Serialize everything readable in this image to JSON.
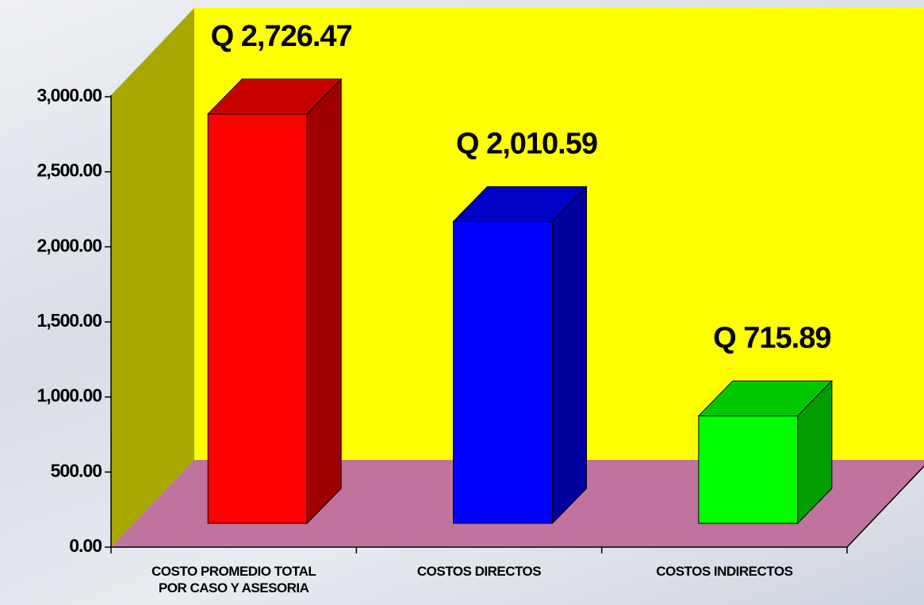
{
  "chart_data": {
    "type": "bar3d",
    "categories": [
      "COSTO PROMEDIO TOTAL POR CASO Y ASESORIA",
      "COSTOS DIRECTOS",
      "COSTOS INDIRECTOS"
    ],
    "values": [
      2726.47,
      2010.59,
      715.89
    ],
    "value_labels": [
      "Q 2,726.47",
      "Q 2,010.59",
      "Q 715.89"
    ],
    "colors": [
      "#ff0000",
      "#0000ff",
      "#00ff00"
    ],
    "ylim": [
      0,
      3000
    ],
    "yticks": [
      {
        "value": 0,
        "label": "0.00"
      },
      {
        "value": 500,
        "label": "500.00"
      },
      {
        "value": 1000,
        "label": "1,000.00"
      },
      {
        "value": 1500,
        "label": "1,500.00"
      },
      {
        "value": 2000,
        "label": "2,000.00"
      },
      {
        "value": 2500,
        "label": "2,500.00"
      },
      {
        "value": 3000,
        "label": "3,000.00"
      }
    ]
  }
}
